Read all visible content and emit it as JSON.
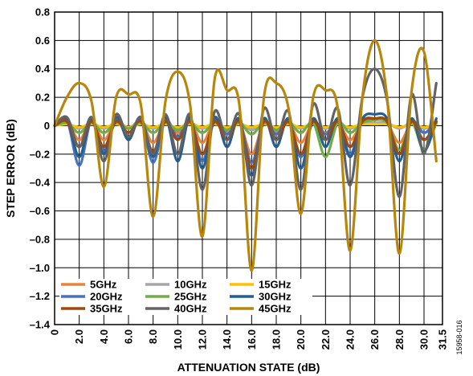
{
  "chart_data": {
    "type": "line",
    "xlabel": "ATTENUATION STATE (dB)",
    "ylabel": "STEP ERROR (dB)",
    "xlim": [
      0,
      31.5
    ],
    "ylim": [
      -1.4,
      0.8
    ],
    "x_ticks": [
      0,
      2.0,
      4.0,
      6.0,
      8.0,
      10.0,
      12.0,
      14.0,
      16.0,
      18.0,
      20.0,
      22.0,
      24.0,
      26.0,
      28.0,
      30.0,
      31.5
    ],
    "x_tick_labels": [
      "0",
      "2.0",
      "4.0",
      "6.0",
      "8.0",
      "10.0",
      "12.0",
      "14.0",
      "16.0",
      "18.0",
      "20.0",
      "22.0",
      "24.0",
      "26.0",
      "28.0",
      "30.0",
      "31.5"
    ],
    "y_ticks": [
      0.8,
      0.6,
      0.4,
      0.2,
      0,
      -0.2,
      -0.4,
      -0.6,
      -0.8,
      -1.0,
      -1.2,
      -1.4
    ],
    "y_tick_labels": [
      "0.8",
      "0.6",
      "0.4",
      "0.2",
      "0",
      "–0.2",
      "–0.4",
      "–0.6",
      "–0.8",
      "–1.0",
      "–1.2",
      "–1.4"
    ],
    "grid": true,
    "legend_position": "bottom-left",
    "figure_id": "15958-016",
    "x": [
      0,
      1,
      2,
      3,
      4,
      5,
      6,
      7,
      8,
      9,
      10,
      11,
      12,
      13,
      14,
      15,
      16,
      17,
      18,
      19,
      20,
      21,
      22,
      23,
      24,
      25,
      26,
      27,
      28,
      29,
      30,
      31
    ],
    "series": [
      {
        "name": "5GHz",
        "color": "#E8833A",
        "values": [
          0,
          0.03,
          -0.1,
          0.03,
          -0.1,
          0.03,
          -0.02,
          0.03,
          -0.12,
          0.03,
          -0.05,
          0.03,
          -0.12,
          0.03,
          -0.05,
          0.02,
          -0.2,
          0.02,
          -0.05,
          0.02,
          -0.12,
          0.02,
          -0.05,
          0.02,
          -0.1,
          0.02,
          0.05,
          0.02,
          -0.12,
          0.02,
          -0.05,
          0.02
        ]
      },
      {
        "name": "10GHz",
        "color": "#A5A5A5",
        "values": [
          0,
          0.02,
          -0.02,
          0.02,
          -0.02,
          0.02,
          -0.01,
          0.02,
          -0.02,
          0.02,
          -0.02,
          0.02,
          -0.02,
          0.02,
          -0.02,
          0.02,
          -0.03,
          0.02,
          -0.02,
          0.02,
          -0.02,
          0.02,
          -0.02,
          0.02,
          -0.02,
          0.02,
          0.02,
          0.02,
          -0.02,
          0.02,
          -0.02,
          0.02
        ]
      },
      {
        "name": "15GHz",
        "color": "#FFC000",
        "values": [
          0,
          0.01,
          -0.01,
          0.01,
          -0.01,
          0.01,
          -0.01,
          0.01,
          -0.01,
          0.01,
          -0.01,
          0.01,
          -0.01,
          0.01,
          -0.01,
          0.01,
          -0.01,
          0.01,
          -0.01,
          0.01,
          -0.01,
          0.01,
          -0.01,
          0.01,
          -0.01,
          0.01,
          0.01,
          0.01,
          -0.01,
          0.01,
          -0.01,
          0.01
        ]
      },
      {
        "name": "20GHz",
        "color": "#4472C4",
        "values": [
          0,
          0.04,
          -0.28,
          0.04,
          -0.18,
          0.04,
          -0.08,
          0.04,
          -0.26,
          0.04,
          -0.08,
          0.04,
          -0.25,
          0.04,
          -0.06,
          0.03,
          -0.26,
          0.03,
          -0.06,
          0.03,
          -0.22,
          0.03,
          -0.06,
          0.03,
          -0.2,
          0.03,
          0.05,
          0.03,
          -0.2,
          0.03,
          -0.05,
          0.03
        ]
      },
      {
        "name": "25GHz",
        "color": "#70AD47",
        "values": [
          0,
          0.02,
          -0.05,
          0.02,
          -0.05,
          0.02,
          -0.02,
          0.02,
          -0.05,
          0.02,
          -0.03,
          0.02,
          -0.05,
          0.02,
          -0.03,
          0.02,
          -0.06,
          0.02,
          -0.03,
          0.02,
          -0.05,
          0.02,
          -0.22,
          0.02,
          -0.05,
          0.02,
          0.04,
          0.02,
          -0.17,
          0.02,
          -0.17,
          0.02
        ]
      },
      {
        "name": "30GHz",
        "color": "#255E91",
        "values": [
          0,
          0.05,
          -0.22,
          0.05,
          -0.2,
          0.06,
          -0.1,
          0.06,
          -0.22,
          0.06,
          -0.25,
          0.06,
          -0.3,
          0.06,
          -0.15,
          0.05,
          -0.35,
          0.05,
          -0.15,
          0.05,
          -0.3,
          0.05,
          -0.15,
          0.05,
          -0.22,
          0.05,
          0.08,
          0.05,
          -0.25,
          0.05,
          -0.18,
          0.05
        ]
      },
      {
        "name": "35GHz",
        "color": "#9E480E",
        "values": [
          0,
          0.03,
          -0.15,
          0.03,
          -0.15,
          0.03,
          -0.05,
          0.03,
          -0.18,
          0.03,
          -0.1,
          0.03,
          -0.2,
          0.03,
          -0.1,
          0.03,
          -0.3,
          0.03,
          -0.1,
          0.03,
          -0.2,
          0.03,
          -0.1,
          0.03,
          -0.15,
          0.03,
          0.05,
          0.03,
          -0.2,
          0.03,
          -0.1,
          0.03
        ]
      },
      {
        "name": "40GHz",
        "color": "#636363",
        "values": [
          0,
          0.06,
          -0.15,
          0.06,
          -0.25,
          0.08,
          -0.08,
          0.06,
          -0.2,
          0.08,
          -0.2,
          0.08,
          -0.45,
          0.1,
          -0.1,
          0.08,
          -0.42,
          0.12,
          -0.1,
          0.1,
          -0.45,
          0.15,
          -0.1,
          0.12,
          -0.42,
          0.2,
          0.4,
          0.18,
          -0.5,
          0.22,
          -0.2,
          0.3
        ]
      },
      {
        "name": "45GHz",
        "color": "#B8860B",
        "values": [
          0,
          0.2,
          0.3,
          0.17,
          -0.43,
          0.2,
          0.22,
          0.15,
          -0.64,
          0.17,
          0.38,
          0.15,
          -0.78,
          0.33,
          0.25,
          0.15,
          -1.02,
          0.2,
          0.3,
          0.12,
          -0.62,
          0.2,
          0.25,
          0.12,
          -0.88,
          0.2,
          0.6,
          0.2,
          -0.9,
          0.25,
          0.52,
          -0.25
        ]
      }
    ]
  }
}
